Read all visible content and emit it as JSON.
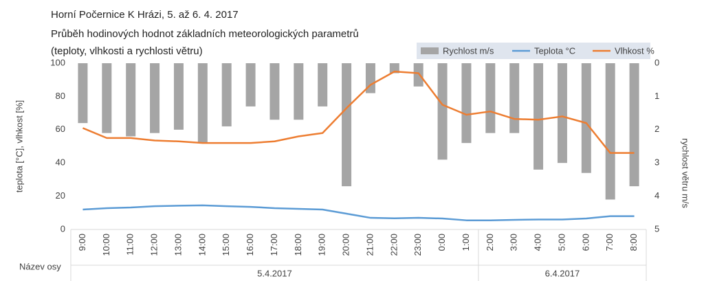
{
  "chart_data": {
    "type": "bar-line",
    "title": [
      "Horní Počernice K Hrázi, 5. až 6. 4. 2017",
      "Průběh hodinových hodnot základních meteorologických parametrů",
      "(teploty, vlhkosti a rychlosti větru)"
    ],
    "groups": [
      {
        "label": "5.4.2017",
        "categories": [
          "9:00",
          "10:00",
          "11:00",
          "12:00",
          "13:00",
          "14:00",
          "15:00",
          "16:00",
          "17:00",
          "18:00",
          "19:00",
          "20:00",
          "21:00",
          "22:00",
          "23:00",
          "0:00",
          "1:00"
        ]
      },
      {
        "label": "6.4.2017",
        "categories": [
          "2:00",
          "3:00",
          "4:00",
          "5:00",
          "6:00",
          "7:00",
          "8:00"
        ]
      }
    ],
    "x_label": "Název osy",
    "y_label": "teplota [°C], vlhkost [%]",
    "y2_label": "rychlost větru m/s",
    "ylim": [
      0,
      100
    ],
    "yticks": [
      0,
      20,
      40,
      60,
      80,
      100
    ],
    "y2lim": [
      0,
      5
    ],
    "y2ticks": [
      0,
      1,
      2,
      3,
      4,
      5
    ],
    "y2_reversed": true,
    "legend": "top-right",
    "series": [
      {
        "name": "Rychlost m/s",
        "type": "bar",
        "axis": "y2",
        "color": "#a5a5a5",
        "values": [
          1.8,
          2.1,
          2.2,
          2.1,
          2.0,
          2.4,
          1.9,
          1.3,
          1.7,
          1.7,
          1.3,
          3.7,
          0.9,
          0.3,
          0.7,
          2.9,
          2.4,
          2.1,
          2.1,
          3.2,
          3.0,
          3.3,
          4.1,
          3.7
        ]
      },
      {
        "name": "Teplota °C",
        "type": "line",
        "color": "#5b9bd5",
        "values": [
          12,
          12.8,
          13.2,
          14,
          14.3,
          14.5,
          14,
          13.6,
          12.8,
          12.4,
          12,
          9.5,
          7,
          6.7,
          7,
          6.6,
          5.5,
          5.5,
          5.8,
          6,
          6,
          6.6,
          8,
          8
        ]
      },
      {
        "name": "Vlhkost %",
        "type": "line",
        "color": "#ed7d31",
        "values": [
          61,
          55,
          55,
          53.5,
          53,
          52,
          52,
          52,
          53,
          56,
          58,
          73,
          87,
          95,
          94,
          75,
          69,
          71,
          66.5,
          66,
          68,
          64,
          46,
          46
        ]
      }
    ]
  }
}
